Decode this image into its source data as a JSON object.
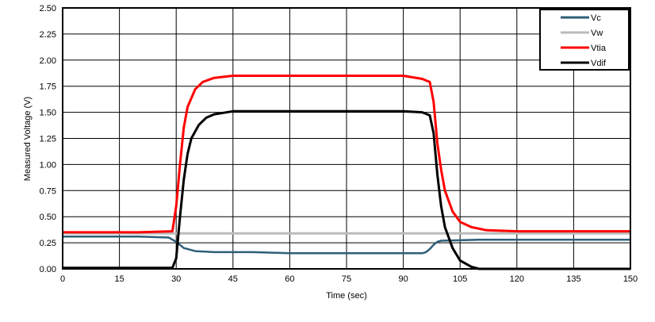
{
  "chart_data": {
    "type": "line",
    "title": "",
    "xlabel": "Time (sec)",
    "ylabel": "Measured Voltage (V)",
    "xlim": [
      0,
      150
    ],
    "ylim": [
      0,
      2.5
    ],
    "xticks": [
      0,
      15,
      30,
      45,
      60,
      75,
      90,
      105,
      120,
      135,
      150
    ],
    "yticks": [
      "0.00",
      "0.25",
      "0.50",
      "0.75",
      "1.00",
      "1.25",
      "1.50",
      "1.75",
      "2.00",
      "2.25",
      "2.50"
    ],
    "grid": true,
    "legend_position": "top-right",
    "series": [
      {
        "name": "Vc",
        "color": "#2e5f78",
        "x": [
          0,
          10,
          20,
          28,
          30,
          32,
          35,
          40,
          50,
          60,
          70,
          80,
          90,
          95,
          96,
          97,
          98,
          99,
          100,
          110,
          120,
          130,
          140,
          150
        ],
        "y": [
          0.31,
          0.31,
          0.31,
          0.3,
          0.26,
          0.2,
          0.17,
          0.16,
          0.16,
          0.15,
          0.15,
          0.15,
          0.15,
          0.15,
          0.16,
          0.19,
          0.23,
          0.26,
          0.27,
          0.28,
          0.28,
          0.28,
          0.28,
          0.28
        ]
      },
      {
        "name": "Vw",
        "color": "#bbbbbb",
        "x": [
          0,
          30,
          60,
          90,
          120,
          150
        ],
        "y": [
          0.34,
          0.34,
          0.34,
          0.34,
          0.34,
          0.34
        ]
      },
      {
        "name": "Vtia",
        "color": "#ff0000",
        "x": [
          0,
          10,
          20,
          29,
          30,
          31,
          32,
          33,
          35,
          37,
          40,
          45,
          60,
          75,
          90,
          95,
          97,
          98,
          99,
          100,
          101,
          103,
          105,
          108,
          112,
          120,
          135,
          150
        ],
        "y": [
          0.35,
          0.35,
          0.35,
          0.36,
          0.6,
          1.0,
          1.35,
          1.55,
          1.72,
          1.79,
          1.83,
          1.85,
          1.85,
          1.85,
          1.85,
          1.82,
          1.79,
          1.6,
          1.2,
          0.95,
          0.75,
          0.55,
          0.45,
          0.4,
          0.37,
          0.36,
          0.36,
          0.36
        ]
      },
      {
        "name": "Vdif",
        "color": "#000000",
        "x": [
          0,
          10,
          20,
          29,
          30,
          31,
          32,
          33,
          34,
          36,
          38,
          40,
          45,
          60,
          75,
          90,
          95,
          97,
          98,
          99,
          100,
          101,
          103,
          105,
          108,
          110,
          130,
          150
        ],
        "y": [
          0.01,
          0.01,
          0.01,
          0.01,
          0.1,
          0.5,
          0.85,
          1.1,
          1.25,
          1.38,
          1.45,
          1.48,
          1.51,
          1.51,
          1.51,
          1.51,
          1.5,
          1.47,
          1.3,
          0.9,
          0.6,
          0.4,
          0.2,
          0.08,
          0.02,
          0.0,
          0.0,
          0.0
        ]
      }
    ]
  }
}
